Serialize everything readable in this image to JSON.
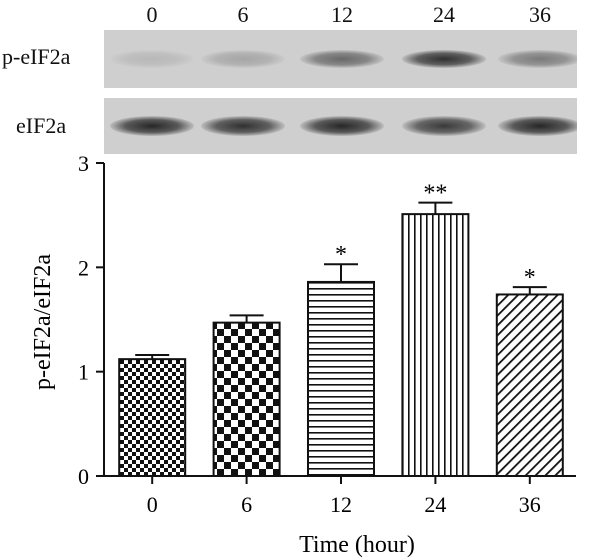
{
  "blot": {
    "lane_headers": [
      "0",
      "6",
      "12",
      "24",
      "36"
    ],
    "rows": [
      {
        "label": "p-eIF2a",
        "band_intensity": [
          0.12,
          0.22,
          0.55,
          0.85,
          0.45
        ]
      },
      {
        "label": "eIF2a",
        "band_intensity": [
          0.9,
          0.85,
          0.9,
          0.8,
          0.9
        ]
      }
    ]
  },
  "chart_data": {
    "type": "bar",
    "categories": [
      "0",
      "6",
      "12",
      "24",
      "36"
    ],
    "values": [
      1.12,
      1.47,
      1.86,
      2.51,
      1.74
    ],
    "errors": [
      0.04,
      0.07,
      0.17,
      0.11,
      0.07
    ],
    "significance": [
      "",
      "",
      "*",
      "**",
      "*"
    ],
    "patterns": [
      "small-checker",
      "large-checker",
      "horizontal-lines",
      "vertical-lines",
      "diagonal-lines"
    ],
    "xlabel": "Time (hour)",
    "ylabel": "p-eIF2a/eIF2a",
    "ylim": [
      0,
      3
    ],
    "yticks": [
      "0",
      "1",
      "2",
      "3"
    ]
  }
}
